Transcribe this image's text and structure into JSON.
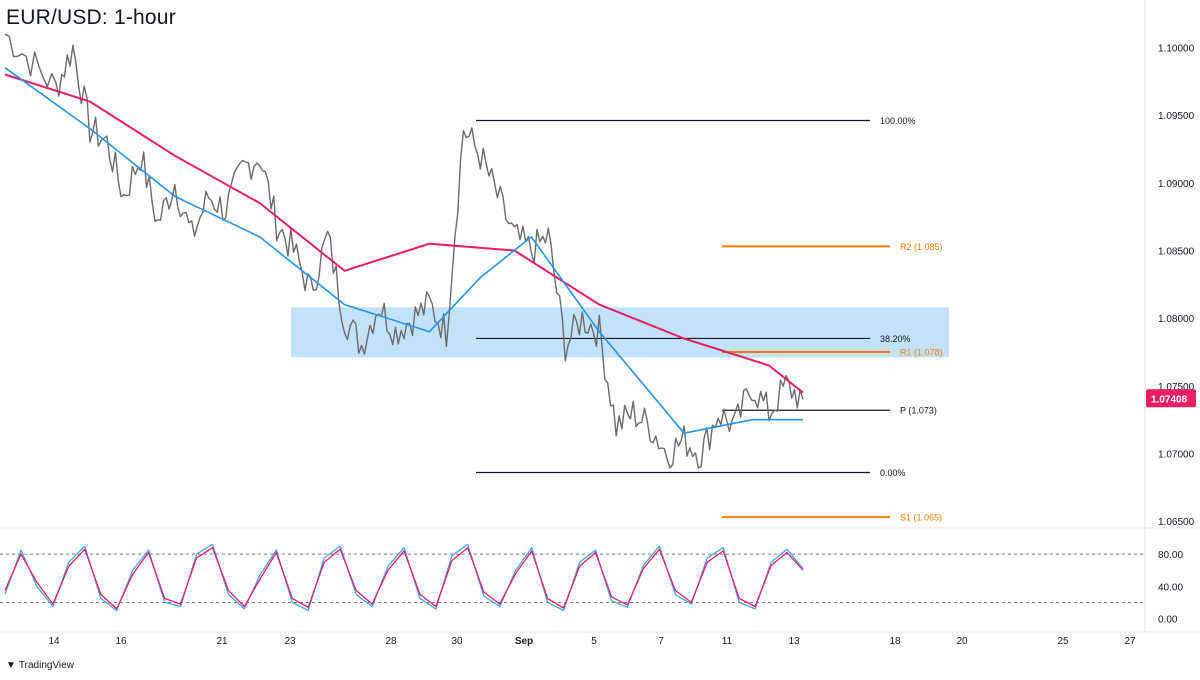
{
  "header": {
    "title": "EUR/USD: 1-hour"
  },
  "footer": {
    "brand": "TradingView",
    "logo_icon": "tradingview-logo-icon"
  },
  "chart_data": [
    {
      "type": "candlestick",
      "title": "EUR/USD: 1-hour",
      "ylim": [
        1.0645,
        1.1035
      ],
      "y_ticks": [
        "1.10000",
        "1.09500",
        "1.09000",
        "1.08500",
        "1.08000",
        "1.07500",
        "1.07000",
        "1.06500"
      ],
      "y_tick_values": [
        1.1,
        1.095,
        1.09,
        1.085,
        1.08,
        1.075,
        1.07,
        1.065
      ],
      "x_ticks": [
        "14",
        "16",
        "21",
        "23",
        "28",
        "30",
        "Sep",
        "5",
        "7",
        "11",
        "13",
        "18",
        "20",
        "25",
        "27"
      ],
      "price_label": {
        "text": "1.07408",
        "value": 1.07408,
        "color": "#e91e63"
      },
      "price_path": [
        [
          0,
          1.101
        ],
        [
          3,
          1.099
        ],
        [
          6,
          1.097
        ],
        [
          8,
          1.1
        ],
        [
          10,
          1.094
        ],
        [
          12,
          1.093
        ],
        [
          14,
          1.089
        ],
        [
          16,
          1.092
        ],
        [
          18,
          1.087
        ],
        [
          20,
          1.09
        ],
        [
          22,
          1.086
        ],
        [
          24,
          1.089
        ],
        [
          26,
          1.088
        ],
        [
          28,
          1.091
        ],
        [
          30,
          1.092
        ],
        [
          32,
          1.087
        ],
        [
          34,
          1.085
        ],
        [
          36,
          1.082
        ],
        [
          38,
          1.086
        ],
        [
          40,
          1.08
        ],
        [
          42,
          1.078
        ],
        [
          44,
          1.081
        ],
        [
          46,
          1.079
        ],
        [
          48,
          1.08
        ],
        [
          50,
          1.081
        ],
        [
          52,
          1.079
        ],
        [
          54,
          1.094
        ],
        [
          56,
          1.092
        ],
        [
          58,
          1.089
        ],
        [
          60,
          1.086
        ],
        [
          62,
          1.085
        ],
        [
          64,
          1.086
        ],
        [
          66,
          1.078
        ],
        [
          68,
          1.08
        ],
        [
          70,
          1.079
        ],
        [
          72,
          1.072
        ],
        [
          74,
          1.073
        ],
        [
          76,
          1.072
        ],
        [
          78,
          1.07
        ],
        [
          80,
          1.071
        ],
        [
          82,
          1.07
        ],
        [
          84,
          1.073
        ],
        [
          86,
          1.072
        ],
        [
          88,
          1.075
        ],
        [
          90,
          1.073
        ],
        [
          92,
          1.075
        ],
        [
          94,
          1.074
        ]
      ],
      "sma_pink": [
        [
          0,
          1.098
        ],
        [
          10,
          1.096
        ],
        [
          20,
          1.092
        ],
        [
          30,
          1.0885
        ],
        [
          40,
          1.0835
        ],
        [
          50,
          1.0855
        ],
        [
          60,
          1.085
        ],
        [
          70,
          1.081
        ],
        [
          80,
          1.0785
        ],
        [
          90,
          1.0765
        ],
        [
          94,
          1.0745
        ]
      ],
      "sma_blue": [
        [
          0,
          1.0985
        ],
        [
          10,
          1.094
        ],
        [
          20,
          1.089
        ],
        [
          30,
          1.086
        ],
        [
          40,
          1.081
        ],
        [
          50,
          1.079
        ],
        [
          56,
          1.083
        ],
        [
          62,
          1.086
        ],
        [
          70,
          1.079
        ],
        [
          80,
          1.0715
        ],
        [
          88,
          1.0725
        ],
        [
          94,
          1.0725
        ]
      ],
      "levels": [
        {
          "label": "100.00%",
          "value": 1.0946,
          "color": "#131722",
          "kind": "fib"
        },
        {
          "label": "R2 (1.085)",
          "value": 1.0853,
          "color": "#f57c00",
          "kind": "pivot"
        },
        {
          "label": "38.20%",
          "value": 1.0785,
          "color": "#131722",
          "kind": "fib"
        },
        {
          "label": "R1 (1.078)",
          "value": 1.0775,
          "color": "#f57c00",
          "kind": "pivot"
        },
        {
          "label": "P (1.073)",
          "value": 1.0732,
          "color": "#131722",
          "kind": "pivot"
        },
        {
          "label": "0.00%",
          "value": 1.0686,
          "color": "#131722",
          "kind": "fib"
        },
        {
          "label": "S1 (1.065)",
          "value": 1.0653,
          "color": "#f57c00",
          "kind": "pivot"
        }
      ],
      "zone": {
        "from": 1.0771,
        "to": 1.0808,
        "color": "#bbdefb"
      }
    },
    {
      "type": "line",
      "title": "",
      "ylim": [
        -8,
        100
      ],
      "y_ticks": [
        "80.00",
        "40.00",
        "0.00"
      ],
      "y_tick_values": [
        80,
        40,
        0
      ],
      "guide_values": [
        80,
        20
      ],
      "series": [
        {
          "color": "#42a5f5",
          "values": [
            30,
            85,
            40,
            15,
            70,
            90,
            25,
            10,
            60,
            85,
            20,
            15,
            80,
            92,
            30,
            12,
            55,
            85,
            20,
            10,
            75,
            90,
            30,
            15,
            65,
            88,
            25,
            12,
            78,
            92,
            28,
            15,
            60,
            88,
            20,
            10,
            70,
            85,
            22,
            14,
            66,
            90,
            30,
            18,
            75,
            88,
            20,
            12,
            70,
            86,
            62
          ]
        },
        {
          "color": "#e91e63",
          "values": [
            35,
            80,
            45,
            18,
            65,
            86,
            30,
            12,
            55,
            82,
            25,
            18,
            75,
            88,
            35,
            15,
            50,
            82,
            25,
            14,
            70,
            86,
            35,
            18,
            60,
            84,
            30,
            15,
            72,
            88,
            33,
            18,
            56,
            84,
            25,
            13,
            65,
            82,
            27,
            17,
            62,
            86,
            35,
            20,
            70,
            84,
            25,
            15,
            66,
            82,
            60
          ]
        }
      ]
    }
  ]
}
